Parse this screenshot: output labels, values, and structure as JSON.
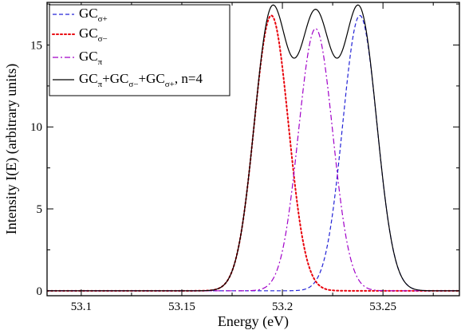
{
  "chart_data": {
    "type": "line",
    "xlabel": "Energy (eV)",
    "ylabel": "Intensity I(E) (arbitrary units)",
    "xlim": [
      53.083,
      53.288
    ],
    "ylim": [
      -0.3,
      17.6
    ],
    "x_ticks": [
      "53.1",
      "53.15",
      "53.2",
      "53.25"
    ],
    "x_tick_values": [
      53.1,
      53.15,
      53.2,
      53.25
    ],
    "y_ticks": [
      "0",
      "5",
      "10",
      "15"
    ],
    "y_tick_values": [
      0,
      5,
      10,
      15
    ],
    "grid": false,
    "legend_position": "top-left",
    "legend": [
      {
        "base": "GC",
        "sub": "σ+",
        "tail": ""
      },
      {
        "base": "GC",
        "sub": "σ−",
        "tail": ""
      },
      {
        "base": "GC",
        "sub": "π",
        "tail": ""
      },
      {
        "parts": [
          {
            "t": "GC",
            "sub": false
          },
          {
            "t": "π",
            "sub": true
          },
          {
            "t": "+GC",
            "sub": false
          },
          {
            "t": "σ−",
            "sub": true
          },
          {
            "t": "+GC",
            "sub": false
          },
          {
            "t": "σ+",
            "sub": true
          },
          {
            "t": ", n=4",
            "sub": false
          }
        ]
      }
    ],
    "series": [
      {
        "name": "GCσ+",
        "style": "dashed",
        "color": "#2323d6",
        "center": 53.2385,
        "amplitude": 16.8,
        "sigma": 0.0085
      },
      {
        "name": "GCσ−",
        "style": "dotted",
        "color": "#e8000b",
        "center": 53.1945,
        "amplitude": 16.8,
        "sigma": 0.0085
      },
      {
        "name": "GCπ",
        "style": "dashdot",
        "color": "#a000c8",
        "center": 53.2165,
        "amplitude": 16.0,
        "sigma": 0.0085
      },
      {
        "name": "GCπ+GCσ−+GCσ+, n=4",
        "style": "solid",
        "color": "#000000",
        "sum_of": [
          "GCσ+",
          "GCσ−",
          "GCπ"
        ]
      }
    ]
  }
}
